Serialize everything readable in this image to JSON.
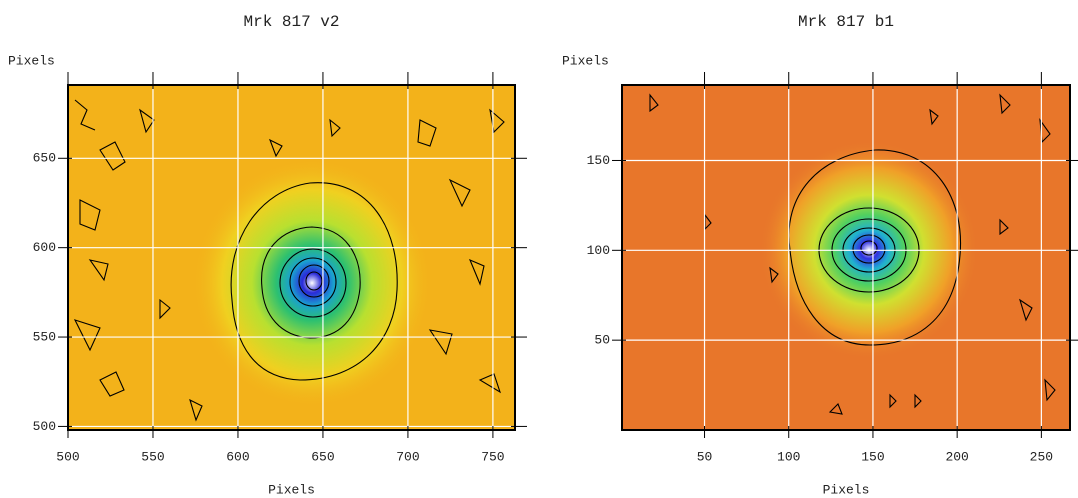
{
  "chart_data": [
    {
      "type": "image",
      "title": "Mrk 817 v2",
      "x_label": "Pixels",
      "y_label": "Pixels",
      "xlim": [
        500,
        763
      ],
      "ylim": [
        498,
        691
      ],
      "xticks": [
        500,
        550,
        600,
        650,
        700,
        750
      ],
      "yticks": [
        500,
        550,
        600,
        650
      ],
      "grid": true
    },
    {
      "type": "image",
      "title": "Mrk 817 b1",
      "x_label": "Pixels",
      "y_label": "Pixels",
      "xlim": [
        1,
        267
      ],
      "ylim": [
        0,
        192
      ],
      "xticks": [
        50,
        100,
        150,
        200,
        250
      ],
      "yticks": [
        50,
        100,
        150
      ],
      "grid": true
    }
  ]
}
